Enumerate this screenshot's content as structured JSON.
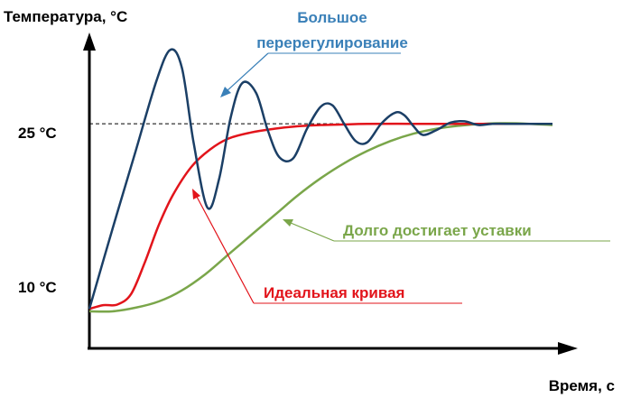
{
  "chart_data": {
    "type": "line",
    "title": "",
    "ylabel": "Температура, °C",
    "xlabel": "Время, с",
    "yticks": [
      {
        "value": 10,
        "label": "10 °C"
      },
      {
        "value": 25,
        "label": "25 °C"
      }
    ],
    "ylim": [
      6.8,
      32.4
    ],
    "xlim": [
      0,
      100
    ],
    "setpoint": 25,
    "annotations": {
      "overshoot": [
        "Большое",
        "перерегулирование"
      ],
      "ideal": "Идеальная кривая",
      "slow": "Долго достигает уставки"
    },
    "colors": {
      "overshoot": "#1b3f66",
      "overshoot_text": "#3a80b8",
      "ideal": "#e2141b",
      "slow": "#7aa64a",
      "axis": "#000000"
    },
    "series": [
      {
        "key": "overshoot",
        "x": [
          0,
          5,
          10,
          14.5,
          17.5,
          20,
          22.5,
          25.5,
          28,
          30.5,
          33,
          36,
          38.5,
          41,
          44,
          47,
          50,
          52.5,
          55,
          57.5,
          60,
          63,
          66,
          68,
          70,
          72,
          75,
          78,
          81,
          84,
          87,
          90,
          95,
          100
        ],
        "y": [
          10,
          16.5,
          22.8,
          28.5,
          31,
          29.5,
          23.5,
          18.2,
          20.5,
          25.5,
          28.3,
          27.5,
          24.5,
          22.3,
          22.2,
          24.6,
          26.4,
          26.5,
          25,
          23.6,
          23.5,
          25,
          25.9,
          25.7,
          24.8,
          24.1,
          24.5,
          25.1,
          25.2,
          24.9,
          25,
          25,
          25,
          25
        ]
      },
      {
        "key": "ideal",
        "x": [
          0,
          3,
          6,
          9,
          12,
          15,
          18,
          22,
          26,
          30,
          35,
          40,
          45,
          50,
          55,
          60,
          70,
          80,
          90
        ],
        "y": [
          10,
          10.3,
          10.35,
          11.2,
          13.8,
          16.8,
          19.2,
          21.5,
          22.9,
          23.8,
          24.3,
          24.6,
          24.8,
          24.9,
          24.95,
          25,
          25,
          25,
          25
        ]
      },
      {
        "key": "slow",
        "x": [
          0,
          5,
          10,
          15,
          20,
          25,
          30,
          35,
          40,
          45,
          50,
          55,
          60,
          65,
          70,
          75,
          80,
          85,
          90,
          95,
          100
        ],
        "y": [
          9.8,
          9.8,
          10.1,
          10.6,
          11.5,
          12.8,
          14.4,
          16.0,
          17.6,
          19.2,
          20.6,
          21.8,
          22.8,
          23.6,
          24.2,
          24.6,
          24.85,
          25.0,
          25.05,
          25.0,
          24.9
        ]
      }
    ]
  }
}
